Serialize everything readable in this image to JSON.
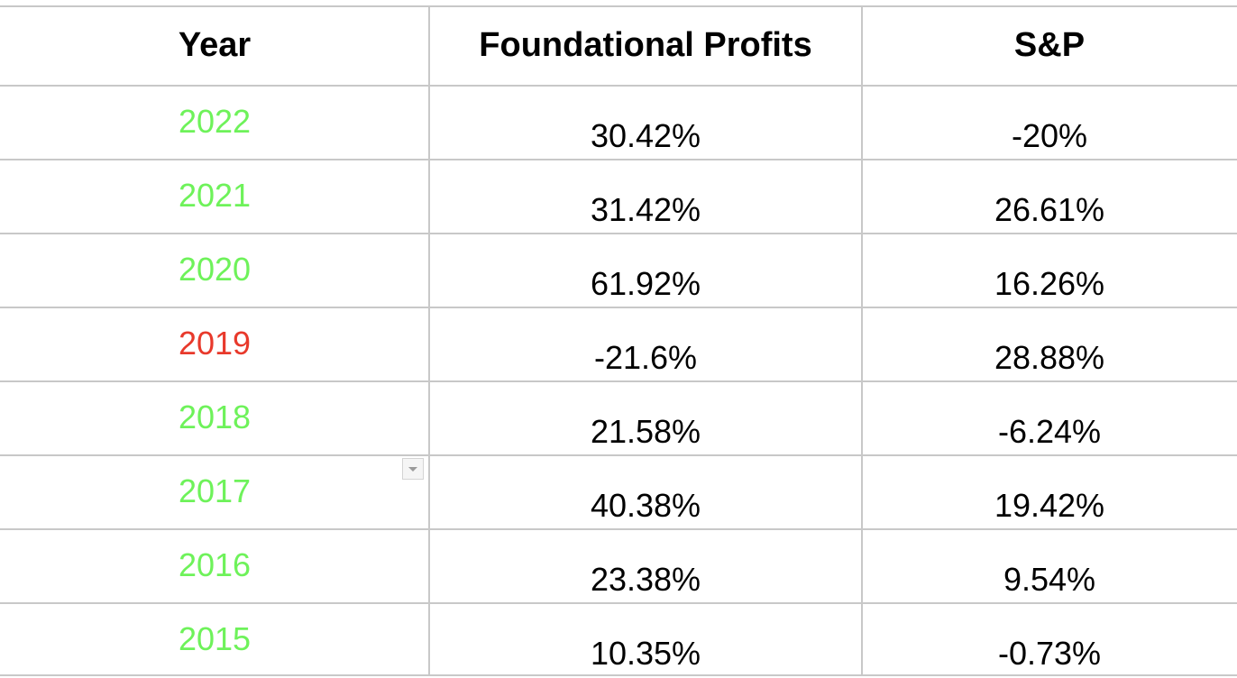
{
  "table": {
    "headers": [
      "Year",
      "Foundational Profits",
      "S&P"
    ],
    "rows": [
      {
        "year": "2022",
        "fp": "30.42%",
        "sp": "-20%"
      },
      {
        "year": "2021",
        "fp": "31.42%",
        "sp": "26.61%"
      },
      {
        "year": "2020",
        "fp": "61.92%",
        "sp": "16.26%"
      },
      {
        "year": "2019",
        "fp": "-21.6%",
        "sp": "28.88%"
      },
      {
        "year": "2018",
        "fp": "21.58%",
        "sp": "-6.24%"
      },
      {
        "year": "2017",
        "fp": "40.38%",
        "sp": "19.42%"
      },
      {
        "year": "2016",
        "fp": "23.38%",
        "sp": "9.54%"
      },
      {
        "year": "2015",
        "fp": "10.35%",
        "sp": "-0.73%"
      }
    ]
  },
  "colors": {
    "year_positive": "#6ef25a",
    "year_negative": "#e8392b",
    "gridline": "#c8c8c8"
  },
  "year_status": [
    "positive",
    "positive",
    "positive",
    "negative",
    "positive",
    "positive",
    "positive",
    "positive"
  ],
  "icons": {
    "filter": "chevron-down-icon"
  }
}
